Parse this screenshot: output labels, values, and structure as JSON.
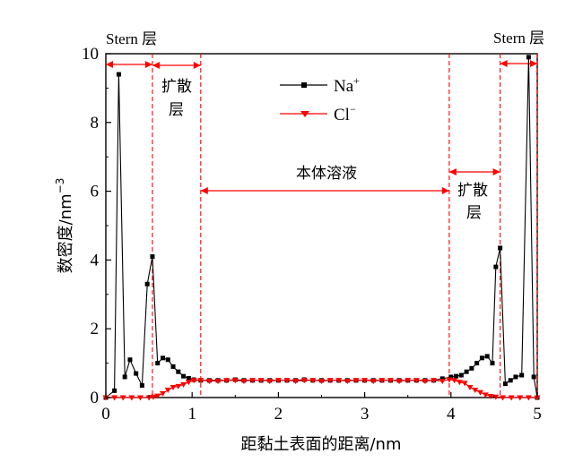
{
  "chart_data": {
    "type": "line",
    "xlabel": "距黏土表面的距离/nm",
    "ylabel": "数密度/nm",
    "ylabel_sup": "−3",
    "xlim": [
      0,
      5
    ],
    "ylim": [
      0,
      10
    ],
    "xticks": [
      "0",
      "1",
      "2",
      "3",
      "4",
      "5"
    ],
    "yticks": [
      "0",
      "2",
      "4",
      "6",
      "8",
      "10"
    ],
    "grid": false,
    "legend": {
      "placement": "top-center",
      "entries": [
        {
          "base": "Na",
          "sup": "+",
          "color": "#000000",
          "marker": "square"
        },
        {
          "base": "Cl",
          "sup": "−",
          "color": "#ff0000",
          "marker": "triangle-down"
        }
      ]
    },
    "annotations": {
      "stern_left": "Stern 层",
      "stern_right": "Stern 层",
      "diffuse_left_1": "扩散",
      "diffuse_left_2": "层",
      "diffuse_right_1": "扩散",
      "diffuse_right_2": "层",
      "bulk": "本体溶液"
    },
    "boundaries_x": [
      0.54,
      1.1,
      3.98,
      4.57,
      5.0
    ],
    "series": [
      {
        "name": "Na+",
        "color": "#000000",
        "x": [
          0.0,
          0.1,
          0.15,
          0.22,
          0.28,
          0.35,
          0.42,
          0.48,
          0.54,
          0.6,
          0.66,
          0.72,
          0.78,
          0.84,
          0.9,
          0.96,
          1.02,
          1.1,
          1.2,
          1.3,
          1.4,
          1.5,
          1.6,
          1.7,
          1.8,
          1.9,
          2.0,
          2.1,
          2.2,
          2.3,
          2.4,
          2.5,
          2.6,
          2.7,
          2.8,
          2.9,
          3.0,
          3.1,
          3.2,
          3.3,
          3.4,
          3.5,
          3.6,
          3.7,
          3.8,
          3.9,
          4.0,
          4.06,
          4.12,
          4.18,
          4.24,
          4.3,
          4.36,
          4.42,
          4.48,
          4.52,
          4.57,
          4.63,
          4.69,
          4.75,
          4.82,
          4.9,
          4.96,
          5.0
        ],
        "values": [
          0.0,
          0.2,
          9.4,
          0.6,
          1.1,
          0.7,
          0.35,
          3.3,
          4.1,
          1.0,
          1.15,
          1.1,
          0.9,
          0.75,
          0.62,
          0.56,
          0.52,
          0.5,
          0.5,
          0.5,
          0.5,
          0.52,
          0.5,
          0.5,
          0.5,
          0.5,
          0.5,
          0.5,
          0.5,
          0.52,
          0.5,
          0.5,
          0.5,
          0.5,
          0.5,
          0.5,
          0.5,
          0.5,
          0.5,
          0.5,
          0.5,
          0.5,
          0.5,
          0.5,
          0.5,
          0.55,
          0.6,
          0.62,
          0.65,
          0.75,
          0.85,
          1.0,
          1.15,
          1.2,
          1.0,
          3.8,
          4.35,
          0.4,
          0.5,
          0.6,
          0.65,
          9.9,
          0.6,
          0.0
        ]
      },
      {
        "name": "Cl−",
        "color": "#ff0000",
        "x": [
          0.0,
          0.1,
          0.2,
          0.3,
          0.4,
          0.5,
          0.55,
          0.6,
          0.66,
          0.72,
          0.78,
          0.84,
          0.9,
          0.96,
          1.02,
          1.1,
          1.2,
          1.3,
          1.4,
          1.5,
          1.6,
          1.7,
          1.8,
          1.9,
          2.0,
          2.1,
          2.2,
          2.3,
          2.4,
          2.5,
          2.6,
          2.7,
          2.8,
          2.9,
          3.0,
          3.1,
          3.2,
          3.3,
          3.4,
          3.5,
          3.6,
          3.7,
          3.8,
          3.9,
          3.98,
          4.04,
          4.1,
          4.16,
          4.22,
          4.28,
          4.34,
          4.4,
          4.46,
          4.52,
          4.6,
          4.7,
          4.8,
          4.9,
          5.0
        ],
        "values": [
          0.0,
          0.0,
          0.0,
          0.0,
          0.0,
          0.0,
          0.02,
          0.05,
          0.12,
          0.22,
          0.3,
          0.33,
          0.38,
          0.45,
          0.5,
          0.5,
          0.48,
          0.48,
          0.5,
          0.5,
          0.48,
          0.5,
          0.5,
          0.48,
          0.5,
          0.5,
          0.48,
          0.5,
          0.5,
          0.48,
          0.5,
          0.5,
          0.48,
          0.5,
          0.5,
          0.48,
          0.5,
          0.5,
          0.48,
          0.5,
          0.5,
          0.48,
          0.5,
          0.48,
          0.52,
          0.5,
          0.45,
          0.42,
          0.3,
          0.22,
          0.15,
          0.08,
          0.04,
          0.02,
          0.0,
          0.0,
          0.0,
          0.0,
          0.0
        ]
      }
    ]
  }
}
